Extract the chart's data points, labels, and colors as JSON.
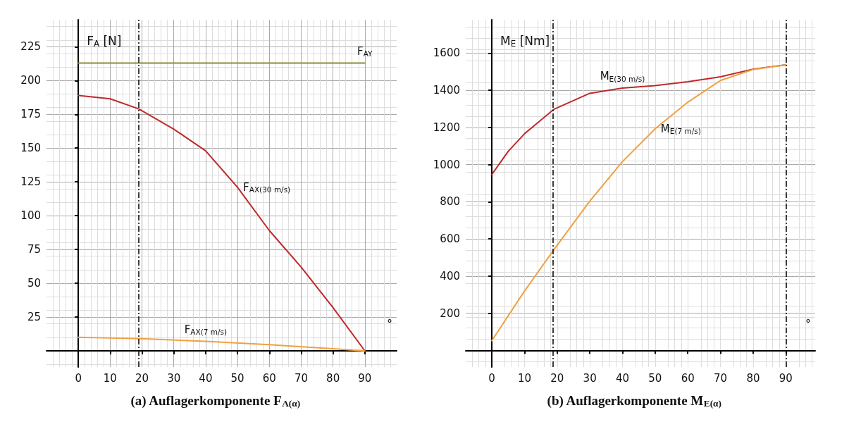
{
  "chart_data": [
    {
      "type": "line",
      "title": "(a) Auflagerkomponente F$_{A(α)}$",
      "ylabel": "F$_{A}$ [N]",
      "xlabel": "°",
      "xlim": [
        -10,
        100
      ],
      "ylim": [
        -12,
        245
      ],
      "xticks": [
        0,
        10,
        20,
        30,
        40,
        50,
        60,
        70,
        80,
        90
      ],
      "yticks": [
        25,
        50,
        75,
        100,
        125,
        150,
        175,
        200,
        225
      ],
      "grid": true,
      "legend": false,
      "marker": "none",
      "series": [
        {
          "name": "F$_{AY}$",
          "color": "#8b8b3a",
          "x": [
            0,
            90
          ],
          "values": [
            213,
            213
          ]
        },
        {
          "name": "F$_{AX(30 m/s)}$",
          "color": "#c0282a",
          "x": [
            0,
            10,
            19,
            30,
            40,
            50,
            60,
            70,
            80,
            90
          ],
          "values": [
            189,
            186.5,
            179,
            164,
            148,
            121,
            89,
            62,
            32,
            0
          ]
        },
        {
          "name": "F$_{AX(7 m/s)}$",
          "color": "#f0a040",
          "x": [
            0,
            20,
            40,
            60,
            80,
            90
          ],
          "values": [
            10,
            9,
            7,
            4.5,
            1.5,
            0
          ]
        }
      ],
      "ref_lines": [
        {
          "axis": "x",
          "value": 19,
          "line_style": "dashed",
          "color": "#000000"
        }
      ]
    },
    {
      "type": "line",
      "title": "(b) Auflagerkomponente M$_{E(α)}$",
      "ylabel": "M$_{E}$ [Nm]",
      "xlabel": "°",
      "xlim": [
        -8,
        99
      ],
      "ylim": [
        -90,
        1780
      ],
      "xticks": [
        0,
        10,
        20,
        30,
        40,
        50,
        60,
        70,
        80,
        90
      ],
      "yticks": [
        200,
        400,
        600,
        800,
        1000,
        1200,
        1400,
        1600
      ],
      "grid": true,
      "legend": false,
      "marker": "none",
      "series": [
        {
          "name": "M$_{E(30 m/s)}$",
          "color": "#c0282a",
          "x": [
            0,
            5,
            10,
            19,
            30,
            40,
            50,
            60,
            70,
            80,
            90
          ],
          "values": [
            947,
            1071,
            1166,
            1298,
            1384,
            1412,
            1425,
            1446,
            1473,
            1514,
            1537
          ]
        },
        {
          "name": "M$_{E(7 m/s)}$",
          "color": "#f0a040",
          "x": [
            0,
            10,
            19,
            30,
            40,
            50,
            60,
            70,
            80,
            90
          ],
          "values": [
            52,
            319,
            542,
            804,
            1016,
            1193,
            1336,
            1453,
            1512,
            1537
          ]
        }
      ],
      "ref_lines": [
        {
          "axis": "x",
          "value": 18.7,
          "line_style": "dashed",
          "color": "#000000"
        },
        {
          "axis": "x",
          "value": 90,
          "line_style": "dashed",
          "color": "#000000"
        }
      ]
    }
  ]
}
